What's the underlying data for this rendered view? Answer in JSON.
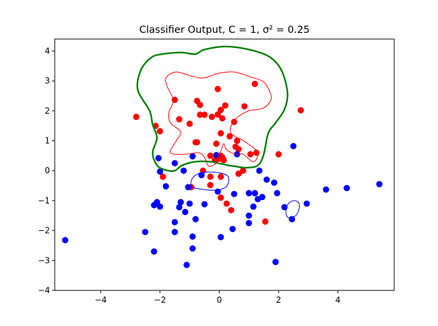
{
  "chart_data": {
    "type": "scatter",
    "title": "Classifier Output, C = 1, σ² = 0.25",
    "xlabel": "",
    "ylabel": "",
    "xlim": [
      -5.55,
      5.9
    ],
    "ylim": [
      -4,
      4.4
    ],
    "x_ticks": [
      -4,
      -2,
      0,
      2,
      4
    ],
    "y_ticks": [
      -4,
      -3,
      -2,
      -1,
      0,
      1,
      2,
      3,
      4
    ],
    "x_tick_labels": [
      "−4",
      "−2",
      "0",
      "2",
      "4"
    ],
    "y_tick_labels": [
      "−4",
      "−3",
      "−2",
      "−1",
      "0",
      "1",
      "2",
      "3",
      "4"
    ],
    "grid": false,
    "legend": "none",
    "series": [
      {
        "color": "#ff0000",
        "points": [
          [
            -2.8,
            1.8
          ],
          [
            -2.15,
            1.5
          ],
          [
            -2.0,
            1.32
          ],
          [
            -1.9,
            -0.2
          ],
          [
            -1.5,
            2.37
          ],
          [
            -1.35,
            1.72
          ],
          [
            -1.0,
            1.57
          ],
          [
            -0.75,
            2.33
          ],
          [
            -0.65,
            2.2
          ],
          [
            -0.65,
            1.87
          ],
          [
            -0.5,
            1.87
          ],
          [
            -0.8,
            0.95
          ],
          [
            -0.75,
            0.95
          ],
          [
            -0.25,
            1.8
          ],
          [
            -0.05,
            2.73
          ],
          [
            -0.05,
            1.88
          ],
          [
            0.05,
            2.03
          ],
          [
            0.2,
            2.18
          ],
          [
            0.1,
            1.75
          ],
          [
            0.05,
            1.25
          ],
          [
            0.35,
            1.15
          ],
          [
            -0.1,
            0.9
          ],
          [
            0.5,
            1.63
          ],
          [
            0.6,
            1.0
          ],
          [
            0.55,
            0.8
          ],
          [
            0.65,
            0.72
          ],
          [
            0.85,
            2.15
          ],
          [
            1.2,
            2.9
          ],
          [
            1.25,
            0.6
          ],
          [
            1.05,
            0.55
          ],
          [
            0.05,
            0.5
          ],
          [
            0.1,
            0.45
          ],
          [
            0.0,
            0.4
          ],
          [
            0.15,
            0.35
          ],
          [
            -0.15,
            0.35
          ],
          [
            -0.3,
            0.5
          ],
          [
            -0.55,
            0.0
          ],
          [
            -0.3,
            -0.2
          ],
          [
            0.05,
            -0.2
          ],
          [
            -0.3,
            -0.48
          ],
          [
            -0.95,
            -0.55
          ],
          [
            0.8,
            0.0
          ],
          [
            0.65,
            -0.1
          ],
          [
            0.05,
            -0.9
          ],
          [
            0.25,
            -1.1
          ],
          [
            0.4,
            -1.32
          ],
          [
            1.55,
            -1.7
          ],
          [
            2.0,
            0.55
          ],
          [
            2.75,
            2.02
          ]
        ]
      },
      {
        "color": "#0000ff",
        "points": [
          [
            -5.2,
            -2.32
          ],
          [
            -2.5,
            -2.05
          ],
          [
            -2.2,
            -2.7
          ],
          [
            -2.2,
            -1.15
          ],
          [
            -2.1,
            -1.05
          ],
          [
            -2.0,
            -1.2
          ],
          [
            -1.8,
            -0.52
          ],
          [
            -2.0,
            -0.03
          ],
          [
            -2.05,
            0.42
          ],
          [
            -1.5,
            0.25
          ],
          [
            -1.2,
            0.0
          ],
          [
            -1.05,
            -0.55
          ],
          [
            -1.3,
            -1.05
          ],
          [
            -1.35,
            -1.22
          ],
          [
            -1.15,
            -1.38
          ],
          [
            -1.5,
            -1.72
          ],
          [
            -1.5,
            -2.05
          ],
          [
            -1.0,
            -1.1
          ],
          [
            -0.8,
            -1.62
          ],
          [
            -0.9,
            -2.2
          ],
          [
            -0.9,
            -2.6
          ],
          [
            -1.1,
            -3.15
          ],
          [
            -0.9,
            0.48
          ],
          [
            -0.6,
            -0.15
          ],
          [
            -0.5,
            -1.12
          ],
          [
            -0.1,
            0.52
          ],
          [
            0.6,
            0.55
          ],
          [
            -0.05,
            -0.7
          ],
          [
            0.5,
            -0.78
          ],
          [
            0.05,
            -2.22
          ],
          [
            0.45,
            -1.95
          ],
          [
            1.0,
            -1.5
          ],
          [
            1.0,
            -1.75
          ],
          [
            1.0,
            -0.75
          ],
          [
            1.2,
            -0.75
          ],
          [
            1.3,
            -0.95
          ],
          [
            1.45,
            -0.88
          ],
          [
            1.15,
            -1.2
          ],
          [
            1.35,
            0.0
          ],
          [
            1.6,
            -0.3
          ],
          [
            1.85,
            -0.4
          ],
          [
            1.95,
            -0.75
          ],
          [
            2.2,
            -1.22
          ],
          [
            2.5,
            0.82
          ],
          [
            2.45,
            -1.62
          ],
          [
            2.95,
            -1.1
          ],
          [
            3.6,
            -0.63
          ],
          [
            4.3,
            -0.58
          ],
          [
            5.4,
            -0.45
          ],
          [
            1.9,
            -3.05
          ]
        ]
      }
    ],
    "contours": [
      {
        "color": "#008000",
        "width": 2.4,
        "points": [
          [
            -2.35,
            2.0
          ],
          [
            -2.75,
            2.7
          ],
          [
            -2.65,
            3.35
          ],
          [
            -2.3,
            3.78
          ],
          [
            -1.9,
            3.9
          ],
          [
            -1.3,
            3.95
          ],
          [
            -0.8,
            3.9
          ],
          [
            -0.5,
            4.05
          ],
          [
            0.2,
            4.15
          ],
          [
            1.0,
            4.05
          ],
          [
            1.7,
            3.8
          ],
          [
            2.1,
            3.35
          ],
          [
            2.3,
            2.6
          ],
          [
            2.2,
            2.05
          ],
          [
            1.9,
            1.6
          ],
          [
            1.65,
            1.25
          ],
          [
            1.5,
            0.55
          ],
          [
            1.3,
            0.18
          ],
          [
            0.9,
            0.1
          ],
          [
            0.5,
            0.15
          ],
          [
            0.2,
            0.2
          ],
          [
            -0.3,
            0.3
          ],
          [
            -0.8,
            0.3
          ],
          [
            -1.25,
            0.18
          ],
          [
            -1.5,
            0.0
          ],
          [
            -1.8,
            0.02
          ],
          [
            -2.1,
            0.18
          ],
          [
            -2.25,
            0.6
          ],
          [
            -2.1,
            1.1
          ],
          [
            -2.25,
            1.55
          ],
          [
            -2.35,
            2.0
          ]
        ]
      },
      {
        "color": "#ff0000",
        "width": 1,
        "points": [
          [
            -1.55,
            2.35
          ],
          [
            -1.75,
            2.8
          ],
          [
            -1.8,
            3.1
          ],
          [
            -1.45,
            3.3
          ],
          [
            -0.9,
            3.15
          ],
          [
            -0.5,
            3.1
          ],
          [
            -0.05,
            3.25
          ],
          [
            0.5,
            3.3
          ],
          [
            1.0,
            3.15
          ],
          [
            1.45,
            3.0
          ],
          [
            1.65,
            2.75
          ],
          [
            1.75,
            2.4
          ],
          [
            1.5,
            2.1
          ],
          [
            1.0,
            2.0
          ],
          [
            0.7,
            1.85
          ],
          [
            0.45,
            1.6
          ],
          [
            0.4,
            1.25
          ],
          [
            0.9,
            0.95
          ],
          [
            1.3,
            0.6
          ],
          [
            1.15,
            0.3
          ],
          [
            0.8,
            0.55
          ],
          [
            0.55,
            0.55
          ],
          [
            0.25,
            0.7
          ],
          [
            0.15,
            0.9
          ],
          [
            0.05,
            0.65
          ],
          [
            -0.05,
            0.5
          ],
          [
            -0.05,
            0.3
          ],
          [
            -0.35,
            0.15
          ],
          [
            -0.5,
            0.45
          ],
          [
            -0.7,
            0.6
          ],
          [
            -1.15,
            0.55
          ],
          [
            -1.65,
            0.6
          ],
          [
            -1.45,
            1.0
          ],
          [
            -1.3,
            1.3
          ],
          [
            -1.65,
            1.6
          ],
          [
            -1.7,
            1.95
          ],
          [
            -1.55,
            2.35
          ]
        ]
      },
      {
        "color": "#0000ff",
        "width": 1,
        "points": [
          [
            -0.95,
            -0.35
          ],
          [
            -0.8,
            -0.15
          ],
          [
            -0.5,
            -0.05
          ],
          [
            0.0,
            -0.07
          ],
          [
            0.3,
            -0.2
          ],
          [
            0.25,
            -0.52
          ],
          [
            -0.1,
            -0.65
          ],
          [
            -0.6,
            -0.62
          ],
          [
            -0.9,
            -0.55
          ],
          [
            -0.95,
            -0.35
          ]
        ]
      },
      {
        "color": "#0000ff",
        "width": 1,
        "points": [
          [
            2.25,
            -1.3
          ],
          [
            2.35,
            -1.08
          ],
          [
            2.55,
            -1.0
          ],
          [
            2.7,
            -1.12
          ],
          [
            2.65,
            -1.4
          ],
          [
            2.5,
            -1.55
          ],
          [
            2.3,
            -1.55
          ],
          [
            2.25,
            -1.3
          ]
        ]
      }
    ]
  }
}
